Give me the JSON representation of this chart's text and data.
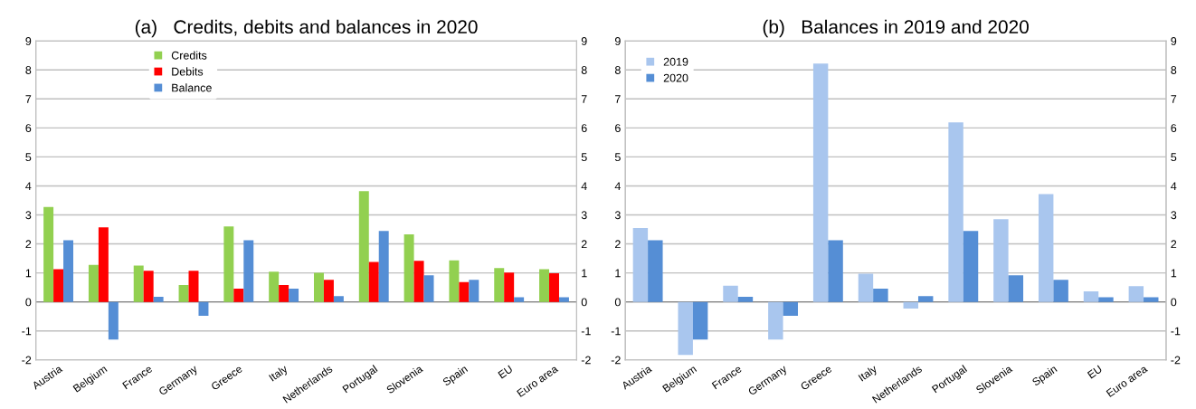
{
  "chart_data": [
    {
      "type": "bar",
      "title": "(a)   Credits, debits and balances in 2020",
      "categories": [
        "Austria",
        "Belgium",
        "France",
        "Germany",
        "Greece",
        "Italy",
        "Netherlands",
        "Portugal",
        "Slovenia",
        "Spain",
        "EU",
        "Euro area"
      ],
      "series": [
        {
          "name": "Credits",
          "color": "#92d050",
          "values": [
            3.27,
            1.28,
            1.25,
            0.58,
            2.6,
            1.04,
            1.0,
            3.82,
            2.33,
            1.43,
            1.17,
            1.13
          ]
        },
        {
          "name": "Debits",
          "color": "#ff0000",
          "values": [
            1.13,
            2.57,
            1.07,
            1.07,
            0.46,
            0.58,
            0.76,
            1.38,
            1.42,
            0.68,
            1.01,
            0.99
          ]
        },
        {
          "name": "Balance",
          "color": "#558ed5",
          "values": [
            2.13,
            -1.3,
            0.18,
            -0.48,
            2.13,
            0.46,
            0.2,
            2.45,
            0.92,
            0.76,
            0.16,
            0.16
          ]
        }
      ],
      "ylim": [
        -2,
        9
      ],
      "yticks": [
        -2,
        -1,
        0,
        1,
        2,
        3,
        4,
        5,
        6,
        7,
        8,
        9
      ],
      "y2lim": [
        -2,
        9
      ],
      "y2ticks": [
        -2,
        -1,
        0,
        1,
        2,
        3,
        4,
        5,
        6,
        7,
        8,
        9
      ],
      "grid": "y",
      "legend": "top left"
    },
    {
      "type": "bar",
      "title": "(b)   Balances in 2019 and 2020",
      "categories": [
        "Austria",
        "Belgium",
        "France",
        "Germany",
        "Greece",
        "Italy",
        "Netherlands",
        "Portugal",
        "Slovenia",
        "Spain",
        "EU",
        "Euro area"
      ],
      "series": [
        {
          "name": "2019",
          "color": "#a9c6ee",
          "values": [
            2.55,
            -1.83,
            0.56,
            -1.3,
            8.22,
            0.97,
            -0.23,
            6.19,
            2.85,
            3.72,
            0.36,
            0.54
          ]
        },
        {
          "name": "2020",
          "color": "#558ed5",
          "values": [
            2.13,
            -1.3,
            0.18,
            -0.48,
            2.13,
            0.46,
            0.2,
            2.45,
            0.92,
            0.76,
            0.16,
            0.16
          ]
        }
      ],
      "ylim": [
        -2,
        9
      ],
      "yticks": [
        -2,
        -1,
        0,
        1,
        2,
        3,
        4,
        5,
        6,
        7,
        8,
        9
      ],
      "y2lim": [
        -2,
        9
      ],
      "y2ticks": [
        -2,
        -1,
        0,
        1,
        2,
        3,
        4,
        5,
        6,
        7,
        8,
        9
      ],
      "grid": "y",
      "legend": "top left"
    }
  ]
}
